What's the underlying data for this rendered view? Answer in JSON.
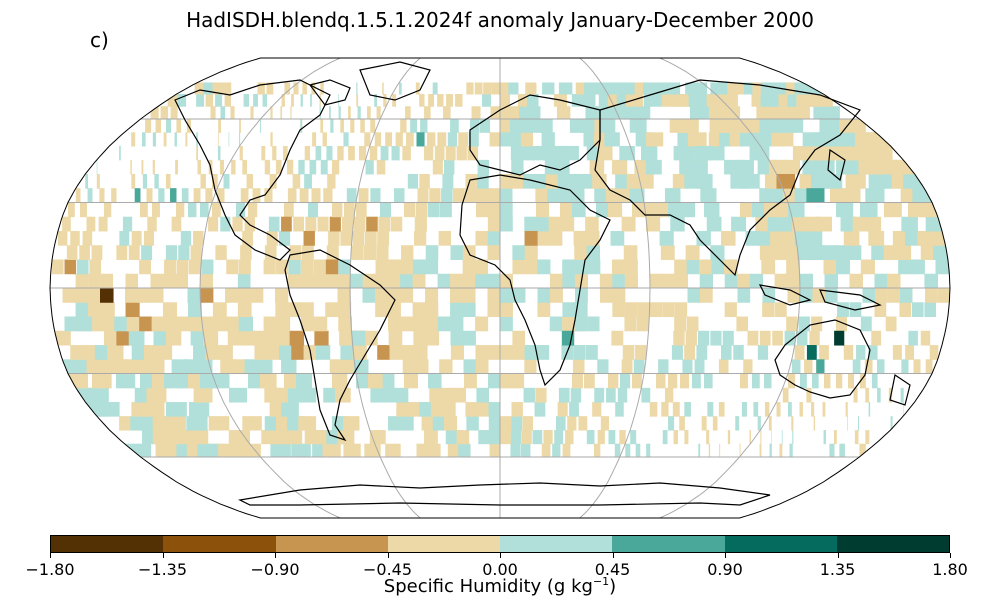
{
  "title": "HadISDH.blendq.1.5.1.2024f anomaly January-December 2000",
  "panel_label": "c)",
  "colorbar": {
    "colors": [
      "#543005",
      "#8c510a",
      "#c89550",
      "#edd9a8",
      "#b0e0d9",
      "#4aa89a",
      "#056b5e",
      "#003c30"
    ],
    "ticks": [
      "−1.80",
      "−1.35",
      "−0.90",
      "−0.45",
      "0.00",
      "0.45",
      "0.90",
      "1.35",
      "1.80"
    ],
    "label_main": "Specific Humidity (g kg",
    "label_sup": "−1",
    "label_end": ")"
  },
  "map": {
    "projection": "Robinson",
    "graticule": true,
    "anomaly_field": {
      "units": "g kg−1",
      "cells": [
        {
          "lon": -160,
          "lat": -5,
          "v": -1.6
        },
        {
          "lon": -140,
          "lat": 30,
          "v": 0.6
        },
        {
          "lon": -155,
          "lat": 30,
          "v": 0.6
        },
        {
          "lon": -90,
          "lat": 20,
          "v": -0.6
        },
        {
          "lon": -80,
          "lat": 15,
          "v": -0.6
        },
        {
          "lon": -70,
          "lat": 5,
          "v": -0.6
        },
        {
          "lon": -105,
          "lat": 45,
          "v": -0.3
        },
        {
          "lon": -95,
          "lat": 40,
          "v": -0.3
        },
        {
          "lon": -100,
          "lat": 55,
          "v": 0.3
        },
        {
          "lon": -50,
          "lat": -10,
          "v": -0.3
        },
        {
          "lon": -60,
          "lat": -20,
          "v": 0.3
        },
        {
          "lon": -55,
          "lat": -35,
          "v": -0.2
        },
        {
          "lon": -30,
          "lat": 45,
          "v": -0.3
        },
        {
          "lon": -40,
          "lat": 50,
          "v": 0.6
        },
        {
          "lon": -35,
          "lat": 20,
          "v": -0.2
        },
        {
          "lon": 0,
          "lat": 50,
          "v": 0.3
        },
        {
          "lon": 20,
          "lat": 50,
          "v": 0.3
        },
        {
          "lon": 40,
          "lat": 55,
          "v": 0.3
        },
        {
          "lon": 10,
          "lat": 15,
          "v": -0.6
        },
        {
          "lon": 30,
          "lat": 15,
          "v": -0.3
        },
        {
          "lon": -5,
          "lat": 10,
          "v": -0.3
        },
        {
          "lon": 25,
          "lat": -20,
          "v": 0.7
        },
        {
          "lon": 30,
          "lat": -15,
          "v": 0.3
        },
        {
          "lon": 45,
          "lat": -20,
          "v": -0.3
        },
        {
          "lon": 70,
          "lat": 30,
          "v": 0.3
        },
        {
          "lon": 90,
          "lat": 45,
          "v": 0.3
        },
        {
          "lon": 110,
          "lat": 55,
          "v": -0.3
        },
        {
          "lon": 120,
          "lat": 35,
          "v": -0.6
        },
        {
          "lon": 130,
          "lat": 30,
          "v": 0.6
        },
        {
          "lon": 100,
          "lat": 15,
          "v": 0.3
        },
        {
          "lon": 125,
          "lat": -25,
          "v": 1.1
        },
        {
          "lon": 135,
          "lat": -20,
          "v": 1.5
        },
        {
          "lon": 130,
          "lat": -30,
          "v": 0.8
        },
        {
          "lon": 145,
          "lat": -35,
          "v": -0.3
        },
        {
          "lon": 160,
          "lat": -5,
          "v": 0.3
        },
        {
          "lon": -170,
          "lat": -15,
          "v": 0.4
        }
      ]
    }
  }
}
